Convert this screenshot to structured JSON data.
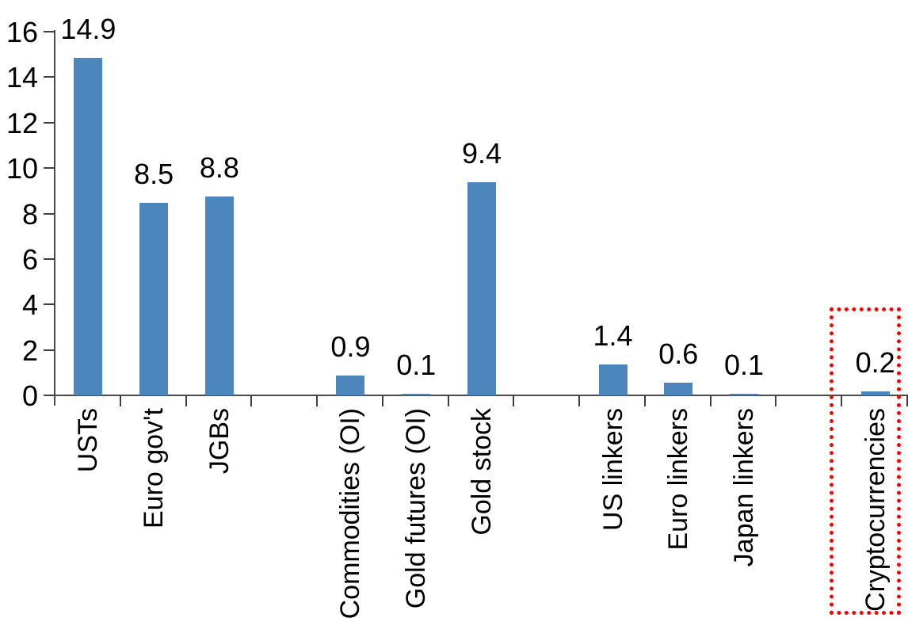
{
  "chart_data": {
    "type": "bar",
    "title": "",
    "categories": [
      "USTs",
      "Euro gov't",
      "JGBs",
      "",
      "Commodities (OI)",
      "Gold futures (OI)",
      "Gold stock",
      "",
      "US linkers",
      "Euro linkers",
      "Japan linkers",
      "",
      "Cryptocurrencies"
    ],
    "values": [
      14.9,
      8.5,
      8.8,
      null,
      0.9,
      0.1,
      9.4,
      null,
      1.4,
      0.6,
      0.1,
      null,
      0.2
    ],
    "bar_labels": [
      "14.9",
      "8.5",
      "8.8",
      null,
      "0.9",
      "0.1",
      "9.4",
      null,
      "1.4",
      "0.6",
      "0.1",
      null,
      "0.2"
    ],
    "xlabel": "",
    "ylabel": "",
    "ylim": [
      0,
      16
    ],
    "yticks": [
      0,
      2,
      4,
      6,
      8,
      10,
      12,
      14,
      16
    ],
    "grid": false,
    "legend": null,
    "bar_color": "#4d86bc",
    "axis_color": "#4a4a4a",
    "text_color": "#000000",
    "highlight": {
      "category": "Cryptocurrencies",
      "style": "dotted-box",
      "color": "#ff0000"
    }
  }
}
